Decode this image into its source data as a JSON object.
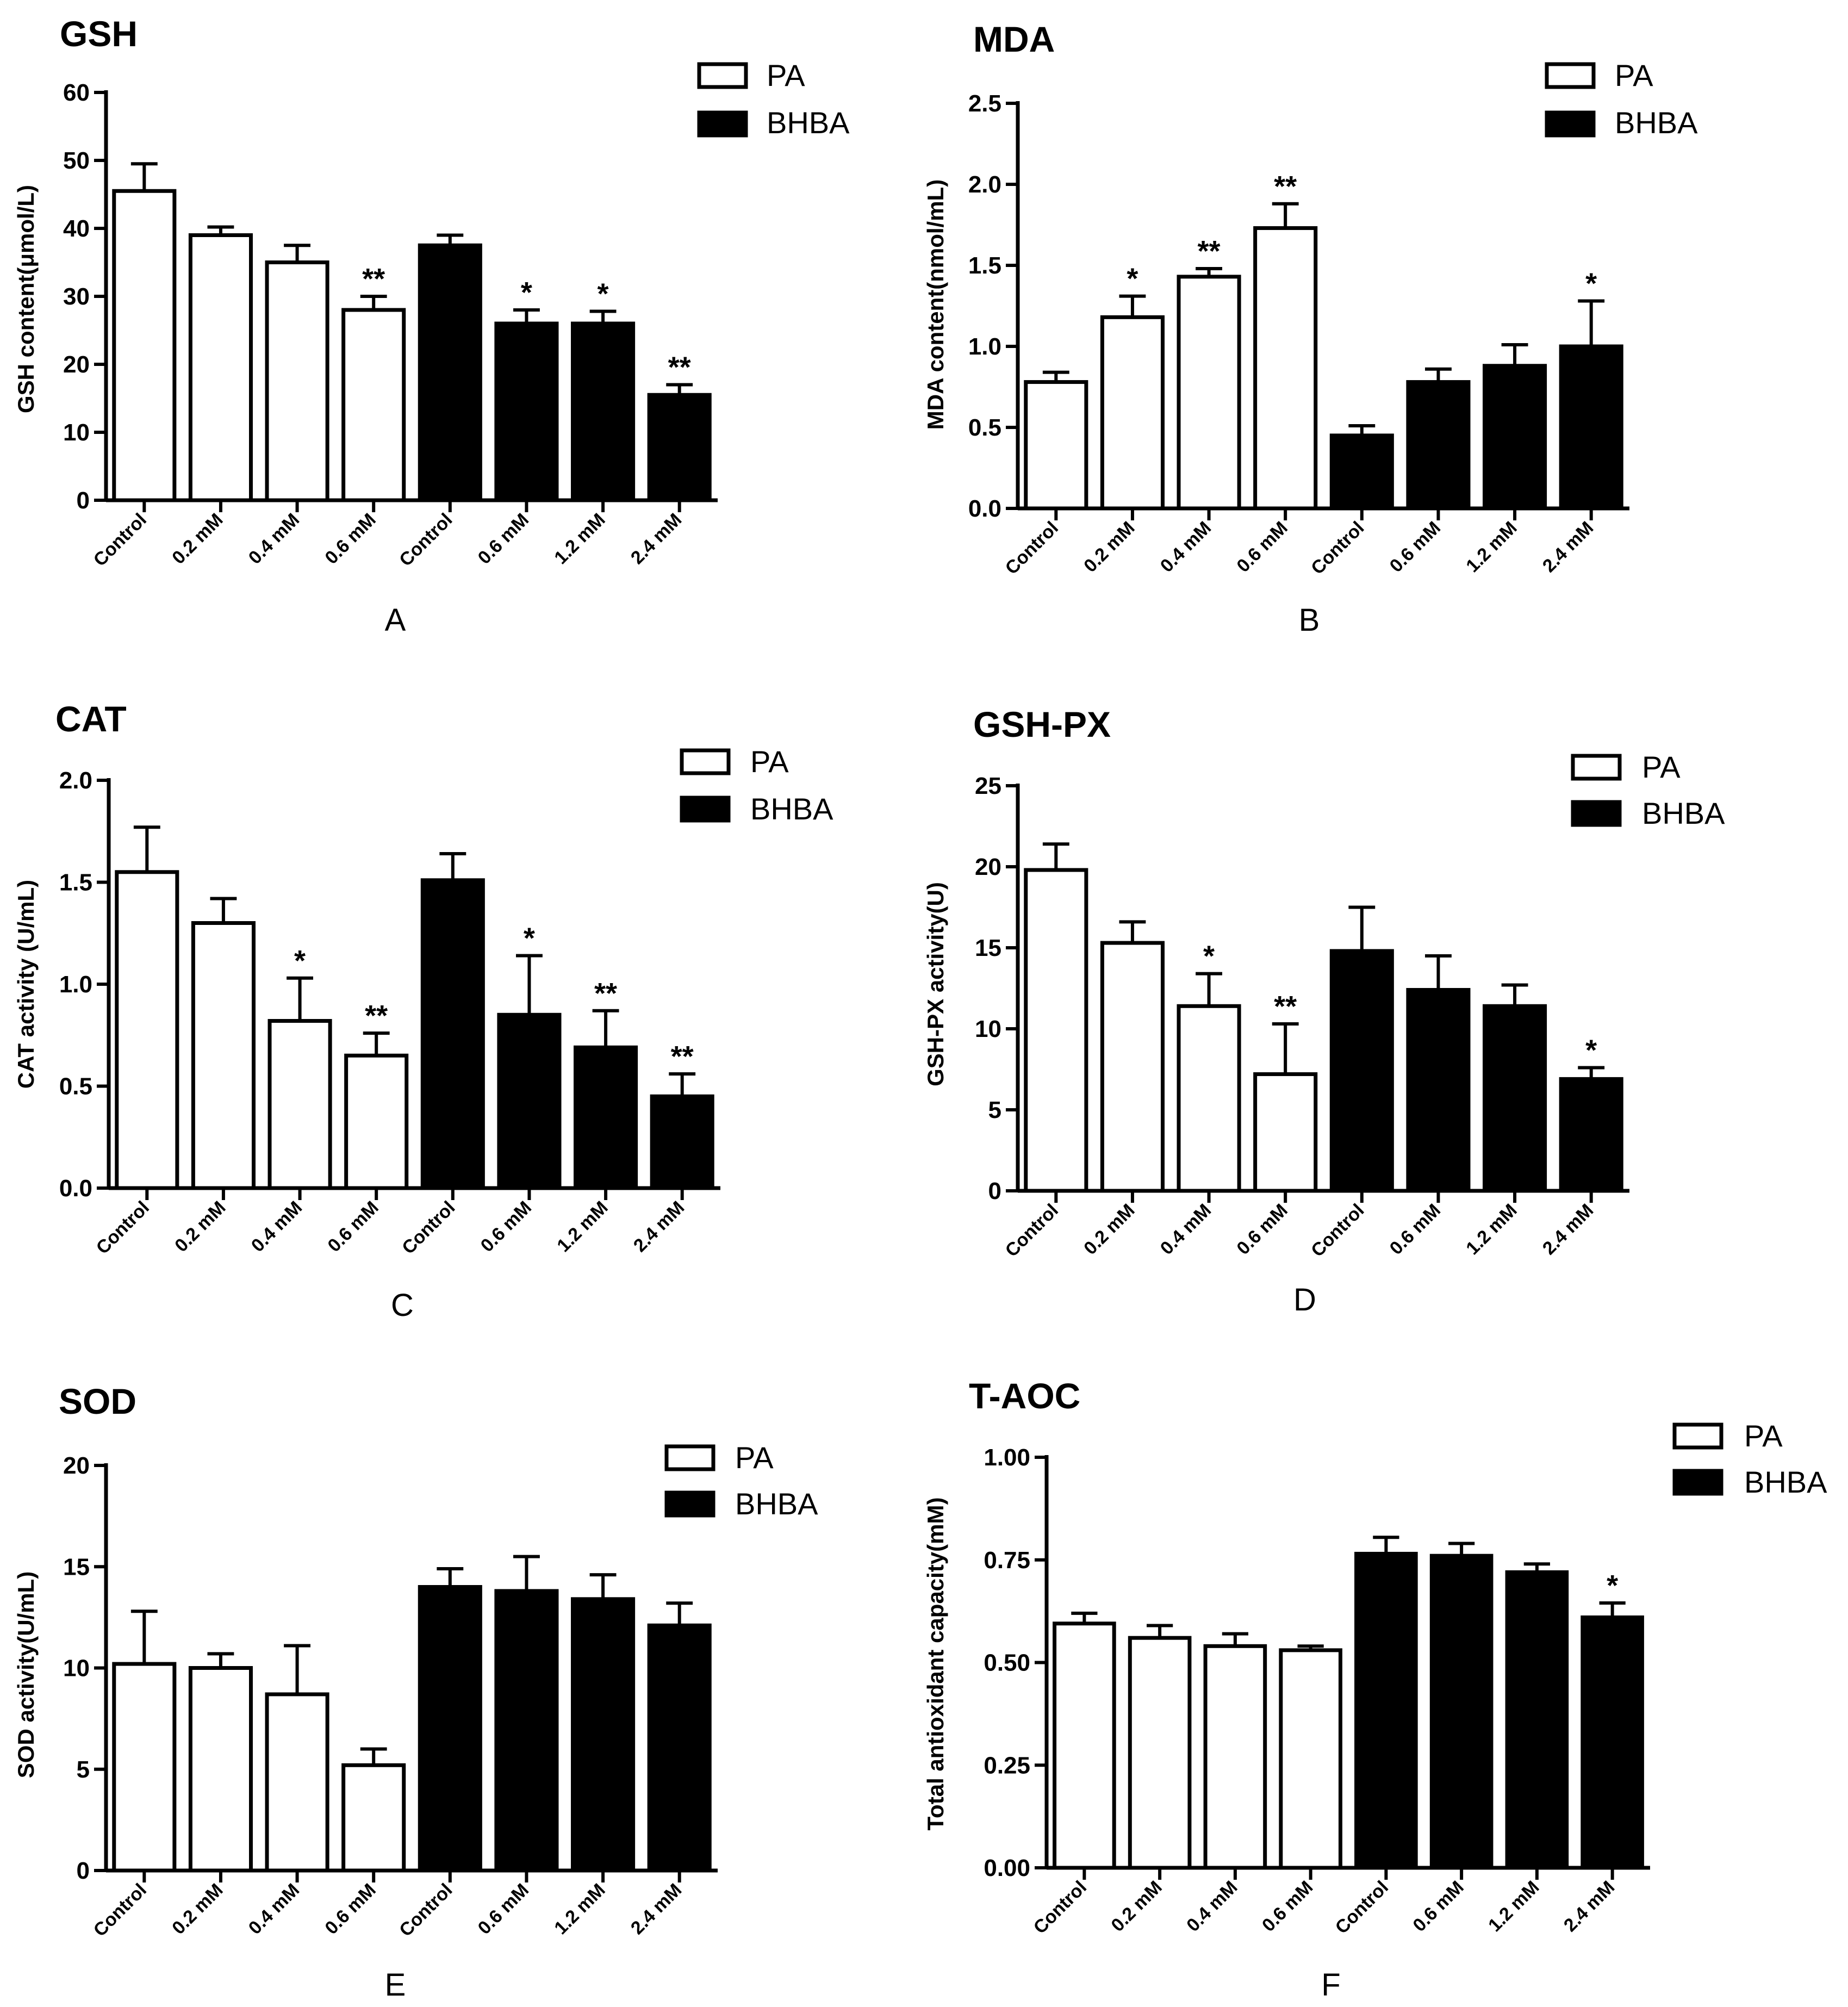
{
  "figure": {
    "legend": [
      {
        "label": "PA",
        "fill": "#ffffff"
      },
      {
        "label": "BHBA",
        "fill": "#000000"
      }
    ]
  },
  "chart_data": [
    {
      "type": "bar",
      "title": "GSH",
      "panel": "A",
      "ylabel": "GSH content(μmol/L)",
      "ylim": [
        0,
        60
      ],
      "yticks": [
        "0",
        "10",
        "20",
        "30",
        "40",
        "50",
        "60"
      ],
      "categories": [
        "Control",
        "0.2 mM",
        "0.4 mM",
        "0.6 mM",
        "Control",
        "0.6 mM",
        "1.2 mM",
        "2.4 mM"
      ],
      "groups": [
        "PA",
        "PA",
        "PA",
        "PA",
        "BHBA",
        "BHBA",
        "BHBA",
        "BHBA"
      ],
      "values": [
        45.5,
        39.0,
        35.0,
        28.0,
        37.5,
        26.0,
        26.0,
        15.5
      ],
      "errors": [
        4.0,
        1.2,
        2.5,
        2.0,
        1.5,
        2.0,
        1.8,
        1.5
      ],
      "significance": [
        "",
        "",
        "",
        "**",
        "",
        "*",
        "*",
        "**"
      ]
    },
    {
      "type": "bar",
      "title": "MDA",
      "panel": "B",
      "ylabel": "MDA content(nmol/mL)",
      "ylim": [
        0,
        2.5
      ],
      "yticks": [
        "0.0",
        "0.5",
        "1.0",
        "1.5",
        "2.0",
        "2.5"
      ],
      "categories": [
        "Control",
        "0.2 mM",
        "0.4 mM",
        "0.6 mM",
        "Control",
        "0.6 mM",
        "1.2 mM",
        "2.4 mM"
      ],
      "groups": [
        "PA",
        "PA",
        "PA",
        "PA",
        "BHBA",
        "BHBA",
        "BHBA",
        "BHBA"
      ],
      "values": [
        0.78,
        1.18,
        1.43,
        1.73,
        0.45,
        0.78,
        0.88,
        1.0
      ],
      "errors": [
        0.06,
        0.13,
        0.05,
        0.15,
        0.06,
        0.08,
        0.13,
        0.28
      ],
      "significance": [
        "",
        "*",
        "**",
        "**",
        "",
        "",
        "",
        "*"
      ]
    },
    {
      "type": "bar",
      "title": "CAT",
      "panel": "C",
      "ylabel": "CAT activity (U/mL)",
      "ylim": [
        0,
        2.0
      ],
      "yticks": [
        "0.0",
        "0.5",
        "1.0",
        "1.5",
        "2.0"
      ],
      "categories": [
        "Control",
        "0.2 mM",
        "0.4 mM",
        "0.6 mM",
        "Control",
        "0.6 mM",
        "1.2 mM",
        "2.4 mM"
      ],
      "groups": [
        "PA",
        "PA",
        "PA",
        "PA",
        "BHBA",
        "BHBA",
        "BHBA",
        "BHBA"
      ],
      "values": [
        1.55,
        1.3,
        0.82,
        0.65,
        1.51,
        0.85,
        0.69,
        0.45
      ],
      "errors": [
        0.22,
        0.12,
        0.21,
        0.11,
        0.13,
        0.29,
        0.18,
        0.11
      ],
      "significance": [
        "",
        "",
        "*",
        "**",
        "",
        "*",
        "**",
        "**"
      ]
    },
    {
      "type": "bar",
      "title": "GSH-PX",
      "panel": "D",
      "ylabel": "GSH-PX activity(U)",
      "ylim": [
        0,
        25
      ],
      "yticks": [
        "0",
        "5",
        "10",
        "15",
        "20",
        "25"
      ],
      "categories": [
        "Control",
        "0.2 mM",
        "0.4 mM",
        "0.6 mM",
        "Control",
        "0.6 mM",
        "1.2 mM",
        "2.4 mM"
      ],
      "groups": [
        "PA",
        "PA",
        "PA",
        "PA",
        "BHBA",
        "BHBA",
        "BHBA",
        "BHBA"
      ],
      "values": [
        19.8,
        15.3,
        11.4,
        7.2,
        14.8,
        12.4,
        11.4,
        6.9
      ],
      "errors": [
        1.6,
        1.3,
        2.0,
        3.1,
        2.7,
        2.1,
        1.3,
        0.7
      ],
      "significance": [
        "",
        "",
        "*",
        "**",
        "",
        "",
        "",
        "*"
      ]
    },
    {
      "type": "bar",
      "title": "SOD",
      "panel": "E",
      "ylabel": "SOD activity(U/mL)",
      "ylim": [
        0,
        20
      ],
      "yticks": [
        "0",
        "5",
        "10",
        "15",
        "20"
      ],
      "categories": [
        "Control",
        "0.2 mM",
        "0.4 mM",
        "0.6 mM",
        "Control",
        "0.6 mM",
        "1.2 mM",
        "2.4 mM"
      ],
      "groups": [
        "PA",
        "PA",
        "PA",
        "PA",
        "BHBA",
        "BHBA",
        "BHBA",
        "BHBA"
      ],
      "values": [
        10.2,
        10.0,
        8.7,
        5.2,
        14.0,
        13.8,
        13.4,
        12.1
      ],
      "errors": [
        2.6,
        0.7,
        2.4,
        0.8,
        0.9,
        1.7,
        1.2,
        1.1
      ],
      "significance": [
        "",
        "",
        "",
        "",
        "",
        "",
        "",
        ""
      ]
    },
    {
      "type": "bar",
      "title": "T-AOC",
      "panel": "F",
      "ylabel": "Total antioxidant capacity(mM)",
      "ylim": [
        0,
        1.0
      ],
      "yticks": [
        "0.00",
        "0.25",
        "0.50",
        "0.75",
        "1.00"
      ],
      "categories": [
        "Control",
        "0.2 mM",
        "0.4 mM",
        "0.6 mM",
        "Control",
        "0.6 mM",
        "1.2 mM",
        "2.4 mM"
      ],
      "groups": [
        "PA",
        "PA",
        "PA",
        "PA",
        "BHBA",
        "BHBA",
        "BHBA",
        "BHBA"
      ],
      "values": [
        0.595,
        0.56,
        0.54,
        0.53,
        0.765,
        0.76,
        0.72,
        0.61
      ],
      "errors": [
        0.025,
        0.03,
        0.03,
        0.01,
        0.04,
        0.03,
        0.02,
        0.035
      ],
      "significance": [
        "",
        "",
        "",
        "",
        "",
        "",
        "",
        "*"
      ]
    }
  ]
}
